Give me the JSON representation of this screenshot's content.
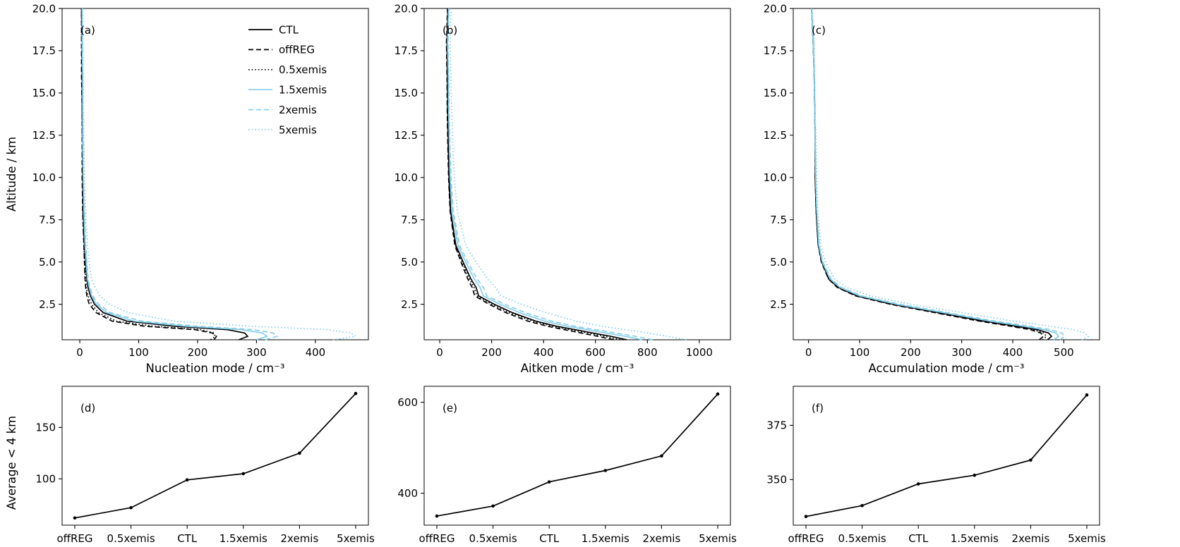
{
  "colors": {
    "black": "#000000",
    "blue": "#87CEEB"
  },
  "legend": {
    "entries": [
      "CTL",
      "offREG",
      "0.5xemis",
      "1.5xemis",
      "2xemis",
      "5xemis"
    ],
    "position": "upper right of panel (a)",
    "frame": false
  },
  "chart_data": [
    {
      "id": "a",
      "label": "(a)",
      "type": "line",
      "xlabel": "Nucleation mode / cm⁻³",
      "ylabel": "Altitude / km",
      "xlim": [
        -30,
        490
      ],
      "ylim": [
        0.4,
        20
      ],
      "grid": false,
      "xticks": [
        0,
        100,
        200,
        300,
        400
      ],
      "yticks": [
        2.5,
        5.0,
        7.5,
        10.0,
        12.5,
        15.0,
        17.5,
        20.0
      ],
      "ytick_decimals": 1,
      "altitudes": [
        0.4,
        0.6,
        0.8,
        1.0,
        1.2,
        1.5,
        2.0,
        2.5,
        3.0,
        3.5,
        4.0,
        5.0,
        6.0,
        8.0,
        10.0,
        12.0,
        14.0,
        16.0,
        18.0,
        20.0
      ],
      "series": [
        {
          "name": "CTL",
          "color": "black",
          "linestyle": "solid",
          "values": [
            270,
            285,
            280,
            250,
            160,
            80,
            40,
            25,
            18,
            14,
            12,
            10,
            8,
            6,
            5,
            5,
            4,
            4,
            4,
            3
          ]
        },
        {
          "name": "offREG",
          "color": "black",
          "linestyle": "dashed",
          "values": [
            228,
            232,
            225,
            195,
            110,
            55,
            28,
            16,
            12,
            10,
            9,
            8,
            7,
            5,
            4,
            4,
            4,
            3,
            3,
            3
          ]
        },
        {
          "name": "0.5xemis",
          "color": "black",
          "linestyle": "dotted",
          "values": [
            222,
            230,
            228,
            205,
            125,
            62,
            32,
            20,
            14,
            11,
            10,
            8,
            7,
            5,
            5,
            4,
            4,
            4,
            3,
            3
          ]
        },
        {
          "name": "1.5xemis",
          "color": "blue",
          "linestyle": "solid",
          "values": [
            300,
            318,
            310,
            275,
            180,
            92,
            46,
            28,
            20,
            16,
            13,
            11,
            9,
            7,
            6,
            5,
            5,
            5,
            4,
            4
          ]
        },
        {
          "name": "2xemis",
          "color": "blue",
          "linestyle": "dashed",
          "values": [
            315,
            335,
            328,
            295,
            200,
            105,
            52,
            32,
            22,
            17,
            14,
            12,
            10,
            8,
            6,
            6,
            5,
            5,
            5,
            4
          ]
        },
        {
          "name": "5xemis",
          "color": "blue",
          "linestyle": "dotted",
          "values": [
            430,
            468,
            460,
            420,
            290,
            160,
            82,
            50,
            34,
            26,
            20,
            16,
            13,
            10,
            8,
            7,
            6,
            6,
            5,
            5
          ]
        }
      ]
    },
    {
      "id": "b",
      "label": "(b)",
      "type": "line",
      "xlabel": "Aitken mode / cm⁻³",
      "ylabel": "",
      "xlim": [
        -60,
        1120
      ],
      "ylim": [
        0.4,
        20
      ],
      "grid": false,
      "xticks": [
        0,
        200,
        400,
        600,
        800,
        1000
      ],
      "yticks": [
        2.5,
        5.0,
        7.5,
        10.0,
        12.5,
        15.0,
        17.5,
        20.0
      ],
      "ytick_decimals": 1,
      "altitudes": [
        0.4,
        0.6,
        0.8,
        1.0,
        1.2,
        1.5,
        2.0,
        2.5,
        3.0,
        3.5,
        4.0,
        5.0,
        6.0,
        8.0,
        10.0,
        12.0,
        14.0,
        16.0,
        18.0,
        20.0
      ],
      "series": [
        {
          "name": "CTL",
          "color": "black",
          "linestyle": "solid",
          "values": [
            720,
            660,
            590,
            520,
            450,
            370,
            280,
            210,
            150,
            140,
            120,
            90,
            62,
            42,
            36,
            33,
            31,
            30,
            28,
            32
          ]
        },
        {
          "name": "offREG",
          "color": "black",
          "linestyle": "dashed",
          "values": [
            670,
            610,
            545,
            480,
            415,
            340,
            255,
            190,
            135,
            125,
            108,
            82,
            58,
            40,
            34,
            31,
            29,
            28,
            26,
            30
          ]
        },
        {
          "name": "0.5xemis",
          "color": "black",
          "linestyle": "dotted",
          "values": [
            695,
            635,
            570,
            500,
            435,
            358,
            268,
            200,
            143,
            132,
            114,
            86,
            60,
            41,
            35,
            32,
            30,
            29,
            27,
            31
          ]
        },
        {
          "name": "1.5xemis",
          "color": "blue",
          "linestyle": "solid",
          "values": [
            780,
            715,
            640,
            565,
            490,
            405,
            308,
            232,
            168,
            155,
            133,
            100,
            70,
            48,
            40,
            37,
            34,
            33,
            30,
            34
          ]
        },
        {
          "name": "2xemis",
          "color": "blue",
          "linestyle": "dashed",
          "values": [
            820,
            755,
            678,
            600,
            520,
            432,
            330,
            250,
            182,
            168,
            144,
            108,
            76,
            52,
            43,
            39,
            36,
            35,
            32,
            36
          ]
        },
        {
          "name": "5xemis",
          "color": "blue",
          "linestyle": "dotted",
          "values": [
            950,
            880,
            800,
            715,
            625,
            525,
            410,
            315,
            235,
            215,
            185,
            140,
            100,
            68,
            56,
            50,
            46,
            43,
            40,
            44
          ]
        }
      ]
    },
    {
      "id": "c",
      "label": "(c)",
      "type": "line",
      "xlabel": "Accumulation mode / cm⁻³",
      "ylabel": "",
      "xlim": [
        -30,
        570
      ],
      "ylim": [
        0.4,
        20
      ],
      "grid": false,
      "xticks": [
        0,
        100,
        200,
        300,
        400,
        500
      ],
      "yticks": [
        2.5,
        5.0,
        7.5,
        10.0,
        12.5,
        15.0,
        17.5,
        20.0
      ],
      "ytick_decimals": 1,
      "altitudes": [
        0.4,
        0.6,
        0.8,
        1.0,
        1.2,
        1.5,
        2.0,
        2.5,
        3.0,
        3.5,
        4.0,
        5.0,
        6.0,
        8.0,
        10.0,
        12.0,
        14.0,
        16.0,
        18.0,
        20.0
      ],
      "series": [
        {
          "name": "CTL",
          "color": "black",
          "linestyle": "solid",
          "values": [
            468,
            476,
            470,
            448,
            408,
            345,
            255,
            165,
            95,
            58,
            40,
            26,
            19,
            15,
            13,
            13,
            12,
            11,
            9,
            6
          ]
        },
        {
          "name": "offREG",
          "color": "black",
          "linestyle": "dashed",
          "values": [
            452,
            460,
            455,
            434,
            396,
            335,
            248,
            160,
            92,
            56,
            39,
            25,
            19,
            15,
            13,
            13,
            12,
            11,
            9,
            6
          ]
        },
        {
          "name": "0.5xemis",
          "color": "black",
          "linestyle": "dotted",
          "values": [
            458,
            466,
            461,
            440,
            401,
            339,
            251,
            162,
            93,
            57,
            39,
            26,
            19,
            15,
            13,
            13,
            12,
            11,
            9,
            6
          ]
        },
        {
          "name": "1.5xemis",
          "color": "blue",
          "linestyle": "solid",
          "values": [
            480,
            490,
            484,
            462,
            421,
            356,
            264,
            172,
            100,
            61,
            42,
            27,
            20,
            16,
            14,
            13,
            12,
            11,
            9,
            6
          ]
        },
        {
          "name": "2xemis",
          "color": "blue",
          "linestyle": "dashed",
          "values": [
            492,
            502,
            496,
            474,
            432,
            366,
            272,
            178,
            104,
            64,
            44,
            28,
            21,
            16,
            14,
            13,
            12,
            11,
            10,
            6
          ]
        },
        {
          "name": "5xemis",
          "color": "blue",
          "linestyle": "dotted",
          "values": [
            535,
            548,
            541,
            518,
            473,
            402,
            302,
            200,
            120,
            74,
            51,
            33,
            24,
            18,
            16,
            15,
            13,
            12,
            11,
            7
          ]
        }
      ]
    },
    {
      "id": "d",
      "label": "(d)",
      "type": "line",
      "categorical": true,
      "xlabel": "",
      "ylabel": "Average < 4 km",
      "categories": [
        "offREG",
        "0.5xemis",
        "CTL",
        "1.5xemis",
        "2xemis",
        "5xemis"
      ],
      "values": [
        62,
        72,
        99,
        105,
        125,
        183
      ],
      "ylim": [
        55,
        190
      ],
      "yticks": [
        100,
        150
      ],
      "ytick_decimals": 0,
      "grid": false,
      "line_color": "black"
    },
    {
      "id": "e",
      "label": "(e)",
      "type": "line",
      "categorical": true,
      "xlabel": "",
      "ylabel": "",
      "categories": [
        "offREG",
        "0.5xemis",
        "CTL",
        "1.5xemis",
        "2xemis",
        "5xemis"
      ],
      "values": [
        350,
        372,
        425,
        450,
        482,
        618
      ],
      "ylim": [
        330,
        635
      ],
      "yticks": [
        400,
        600
      ],
      "ytick_decimals": 0,
      "grid": false,
      "line_color": "black"
    },
    {
      "id": "f",
      "label": "(f)",
      "type": "line",
      "categorical": true,
      "xlabel": "",
      "ylabel": "",
      "categories": [
        "offREG",
        "0.5xemis",
        "CTL",
        "1.5xemis",
        "2xemis",
        "5xemis"
      ],
      "values": [
        333,
        338,
        348,
        352,
        359,
        389
      ],
      "ylim": [
        329,
        393
      ],
      "yticks": [
        350,
        375
      ],
      "ytick_decimals": 0,
      "grid": false,
      "line_color": "black"
    }
  ]
}
